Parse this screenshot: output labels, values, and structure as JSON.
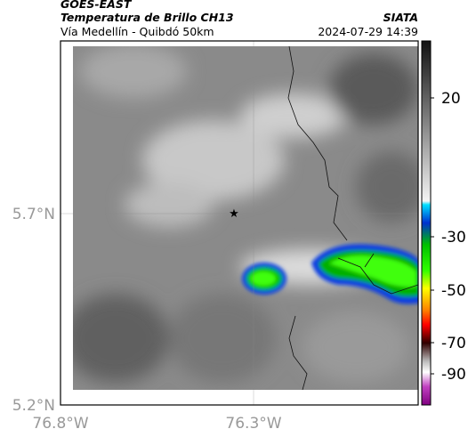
{
  "header": {
    "title": "GOES-EAST",
    "subtitle": "Temperatura de Brillo CH13",
    "source": "SIATA",
    "location": "Vía Medellín - Quibdó 50km",
    "datetime": "2024-07-29 14:39"
  },
  "map": {
    "lat_labels": [
      "5.7°N",
      "5.2°N"
    ],
    "lon_labels": [
      "76.8°W",
      "76.3°W"
    ]
  },
  "colorbar": {
    "ticks": [
      "20",
      "-30",
      "-50",
      "-70",
      "-90"
    ]
  }
}
